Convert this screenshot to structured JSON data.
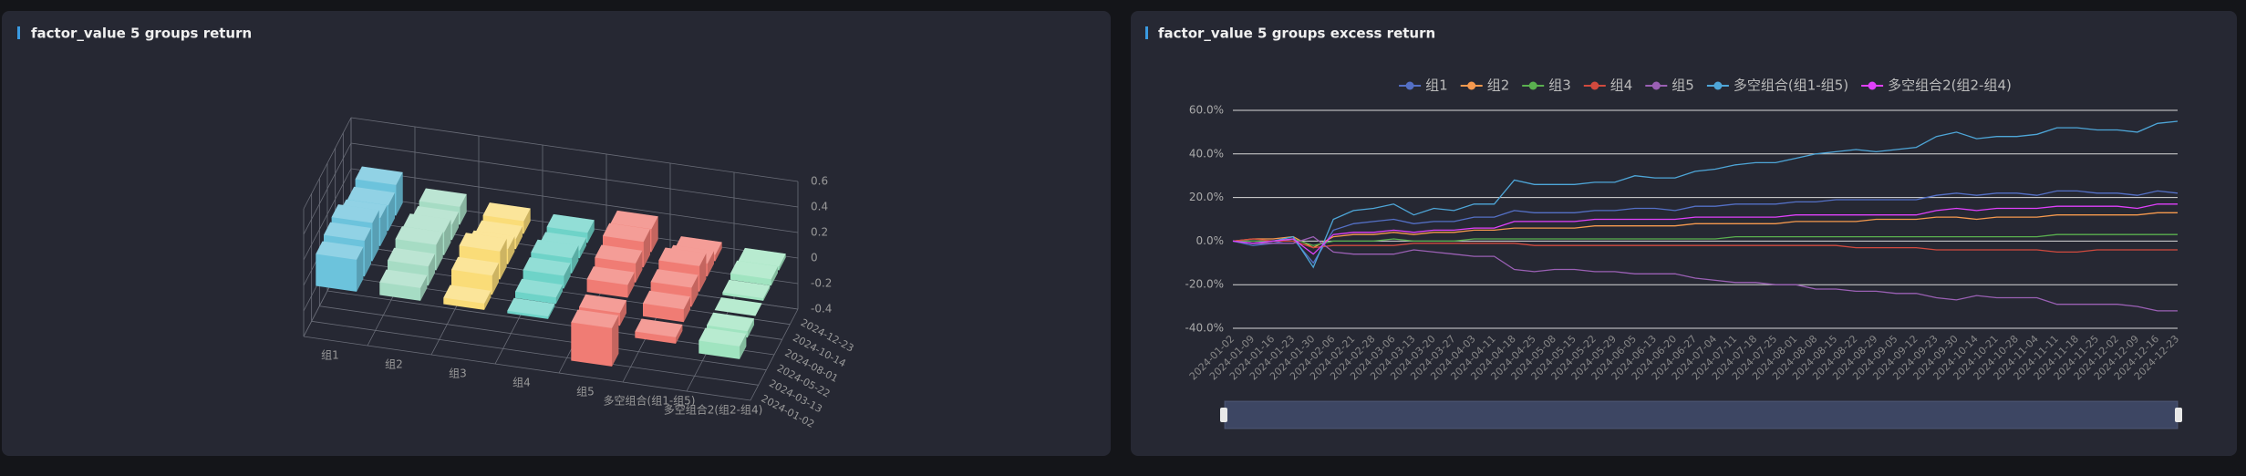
{
  "chart_data": [
    {
      "type": "bar3d",
      "title": "factor_value 5 groups return",
      "categories": [
        "组1",
        "组2",
        "组3",
        "组4",
        "组5",
        "多空组合(组1-组5)",
        "多空组合2(组2-组4)"
      ],
      "dates": [
        "2024-01-02",
        "2024-03-13",
        "2024-05-22",
        "2024-08-01",
        "2024-10-14",
        "2024-12-23"
      ],
      "colors": [
        "#6cc3dc",
        "#a6dcc4",
        "#fadc78",
        "#6ed3c8",
        "#f07c74",
        "#f07c74",
        "#a0e4c0"
      ],
      "values": [
        [
          0.25,
          0.28,
          0.3,
          0.22,
          0.2,
          0.24
        ],
        [
          0.1,
          0.15,
          0.2,
          0.18,
          0.12,
          0.14
        ],
        [
          0.05,
          0.15,
          0.22,
          0.12,
          0.08,
          0.1
        ],
        [
          0.02,
          0.05,
          0.1,
          0.12,
          0.06,
          0.08
        ],
        [
          -0.3,
          -0.1,
          0.1,
          0.15,
          0.2,
          0.18
        ],
        [
          -0.05,
          0.1,
          0.15,
          0.2,
          0.1,
          0.05
        ],
        [
          -0.1,
          -0.05,
          0.0,
          0.02,
          0.05,
          0.03
        ]
      ],
      "zlim": [
        -0.4,
        0.6
      ],
      "zticks": [
        -0.4,
        -0.2,
        0,
        0.2,
        0.4,
        0.6
      ]
    },
    {
      "type": "line",
      "title": "factor_value 5 groups excess return",
      "x": [
        "2024-01-02",
        "2024-01-09",
        "2024-01-16",
        "2024-01-23",
        "2024-01-30",
        "2024-02-06",
        "2024-02-21",
        "2024-02-28",
        "2024-03-06",
        "2024-03-13",
        "2024-03-20",
        "2024-03-27",
        "2024-04-03",
        "2024-04-11",
        "2024-04-18",
        "2024-04-25",
        "2024-05-08",
        "2024-05-15",
        "2024-05-22",
        "2024-05-29",
        "2024-06-05",
        "2024-06-13",
        "2024-06-20",
        "2024-06-27",
        "2024-07-04",
        "2024-07-11",
        "2024-07-18",
        "2024-07-25",
        "2024-08-01",
        "2024-08-08",
        "2024-08-15",
        "2024-08-22",
        "2024-08-29",
        "2024-09-05",
        "2024-09-12",
        "2024-09-23",
        "2024-09-30",
        "2024-10-14",
        "2024-10-21",
        "2024-10-28",
        "2024-11-04",
        "2024-11-11",
        "2024-11-18",
        "2024-11-25",
        "2024-12-02",
        "2024-12-09",
        "2024-12-16",
        "2024-12-23"
      ],
      "ylim": [
        -40,
        60
      ],
      "yticks": [
        {
          "value": -40,
          "label": "-40.0%"
        },
        {
          "value": -20,
          "label": "-20.0%"
        },
        {
          "value": 0,
          "label": "0.0%"
        },
        {
          "value": 20,
          "label": "20.0%"
        },
        {
          "value": 40,
          "label": "40.0%"
        },
        {
          "value": 60,
          "label": "60.0%"
        }
      ],
      "grid": true,
      "series": [
        {
          "name": "组1",
          "color": "#5470c6",
          "values": [
            0,
            -2,
            -1,
            1,
            -10,
            5,
            8,
            9,
            10,
            8,
            9,
            9,
            11,
            11,
            14,
            13,
            13,
            13,
            14,
            14,
            15,
            15,
            14,
            16,
            16,
            17,
            17,
            17,
            18,
            18,
            19,
            19,
            19,
            19,
            19,
            21,
            22,
            21,
            22,
            22,
            21,
            23,
            23,
            22,
            22,
            21,
            23,
            22
          ]
        },
        {
          "name": "组2",
          "color": "#f5994e",
          "values": [
            0,
            1,
            1,
            2,
            -3,
            2,
            3,
            3,
            4,
            3,
            4,
            4,
            5,
            5,
            6,
            6,
            6,
            6,
            7,
            7,
            7,
            7,
            7,
            8,
            8,
            8,
            8,
            8,
            9,
            9,
            9,
            9,
            10,
            10,
            10,
            11,
            11,
            10,
            11,
            11,
            11,
            12,
            12,
            12,
            12,
            12,
            13,
            13
          ]
        },
        {
          "name": "组3",
          "color": "#5ab04f",
          "values": [
            0,
            0,
            0,
            1,
            -2,
            0,
            0,
            0,
            1,
            0,
            0,
            0,
            1,
            1,
            1,
            1,
            1,
            1,
            1,
            1,
            1,
            1,
            1,
            1,
            1,
            2,
            2,
            2,
            2,
            2,
            2,
            2,
            2,
            2,
            2,
            2,
            2,
            2,
            2,
            2,
            2,
            3,
            3,
            3,
            3,
            3,
            3,
            3
          ]
        },
        {
          "name": "组4",
          "color": "#d14a3e",
          "values": [
            0,
            1,
            0,
            0,
            -3,
            -2,
            -2,
            -2,
            -2,
            -1,
            -1,
            -1,
            -1,
            -1,
            -1,
            -2,
            -2,
            -2,
            -2,
            -2,
            -2,
            -2,
            -2,
            -2,
            -2,
            -2,
            -2,
            -2,
            -2,
            -2,
            -2,
            -3,
            -3,
            -3,
            -3,
            -4,
            -4,
            -4,
            -4,
            -4,
            -4,
            -5,
            -5,
            -4,
            -4,
            -4,
            -4,
            -4
          ]
        },
        {
          "name": "组5",
          "color": "#9a60b4",
          "values": [
            0,
            -1,
            -1,
            -1,
            2,
            -5,
            -6,
            -6,
            -6,
            -4,
            -5,
            -6,
            -7,
            -7,
            -13,
            -14,
            -13,
            -13,
            -14,
            -14,
            -15,
            -15,
            -15,
            -17,
            -18,
            -19,
            -19,
            -20,
            -20,
            -22,
            -22,
            -23,
            -23,
            -24,
            -24,
            -26,
            -27,
            -25,
            -26,
            -26,
            -26,
            -29,
            -29,
            -29,
            -29,
            -30,
            -32,
            -32
          ]
        },
        {
          "name": "多空组合(组1-组5)",
          "color": "#4ea6d8",
          "values": [
            0,
            -1,
            0,
            2,
            -12,
            10,
            14,
            15,
            17,
            12,
            15,
            14,
            17,
            17,
            28,
            26,
            26,
            26,
            27,
            27,
            30,
            29,
            29,
            32,
            33,
            35,
            36,
            36,
            38,
            40,
            41,
            42,
            41,
            42,
            43,
            48,
            50,
            47,
            48,
            48,
            49,
            52,
            52,
            51,
            51,
            50,
            54,
            55
          ]
        },
        {
          "name": "多空组合2(组2-组4)",
          "color": "#e040fb",
          "values": [
            0,
            -1,
            0,
            1,
            -6,
            3,
            4,
            4,
            5,
            4,
            5,
            5,
            6,
            6,
            9,
            9,
            9,
            9,
            10,
            10,
            10,
            10,
            10,
            11,
            11,
            11,
            11,
            11,
            12,
            12,
            12,
            12,
            12,
            12,
            12,
            14,
            15,
            14,
            15,
            15,
            15,
            16,
            16,
            16,
            16,
            15,
            17,
            17
          ]
        }
      ]
    }
  ]
}
